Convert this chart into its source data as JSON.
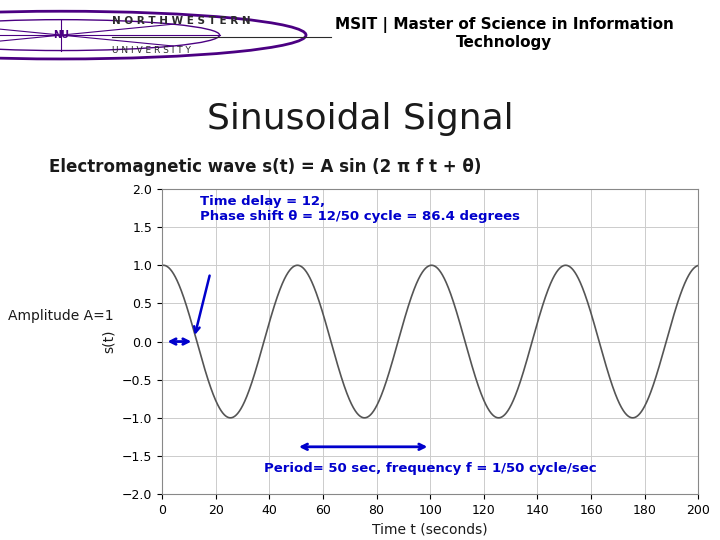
{
  "title_main": "Sinusoidal Signal",
  "header_text": "MSIT | Master of Science in Information\nTechnology",
  "em_wave_label": "Electromagnetic wave s(t) = A sin (2 π f t + θ)",
  "amplitude": 1.0,
  "frequency": 0.02,
  "phase_shift_deg": 86.4,
  "time_delay": 12,
  "period": 50,
  "t_start": 0,
  "t_end": 200,
  "ylim": [
    -2,
    2
  ],
  "yticks": [
    -2,
    -1.5,
    -1,
    -0.5,
    0,
    0.5,
    1,
    1.5,
    2
  ],
  "xticks": [
    0,
    20,
    40,
    60,
    80,
    100,
    120,
    140,
    160,
    180,
    200
  ],
  "xlabel": "Time t (seconds)",
  "ylabel": "s(t)",
  "annotation_time_delay": "Time delay = 12,\nPhase shift θ = 12/50 cycle = 86.4 degrees",
  "annotation_period": "Period= 50 sec, frequency f = 1/50 cycle/sec",
  "amplitude_label": "Amplitude A=1",
  "header_bar_color": "#2E2E8B",
  "wave_color": "#555555",
  "annotation_color": "#0000CC",
  "bg_color": "#FFFFFF",
  "plot_bg_color": "#FFFFFF",
  "nu_purple": "#4B0082",
  "grid_color": "#CCCCCC"
}
